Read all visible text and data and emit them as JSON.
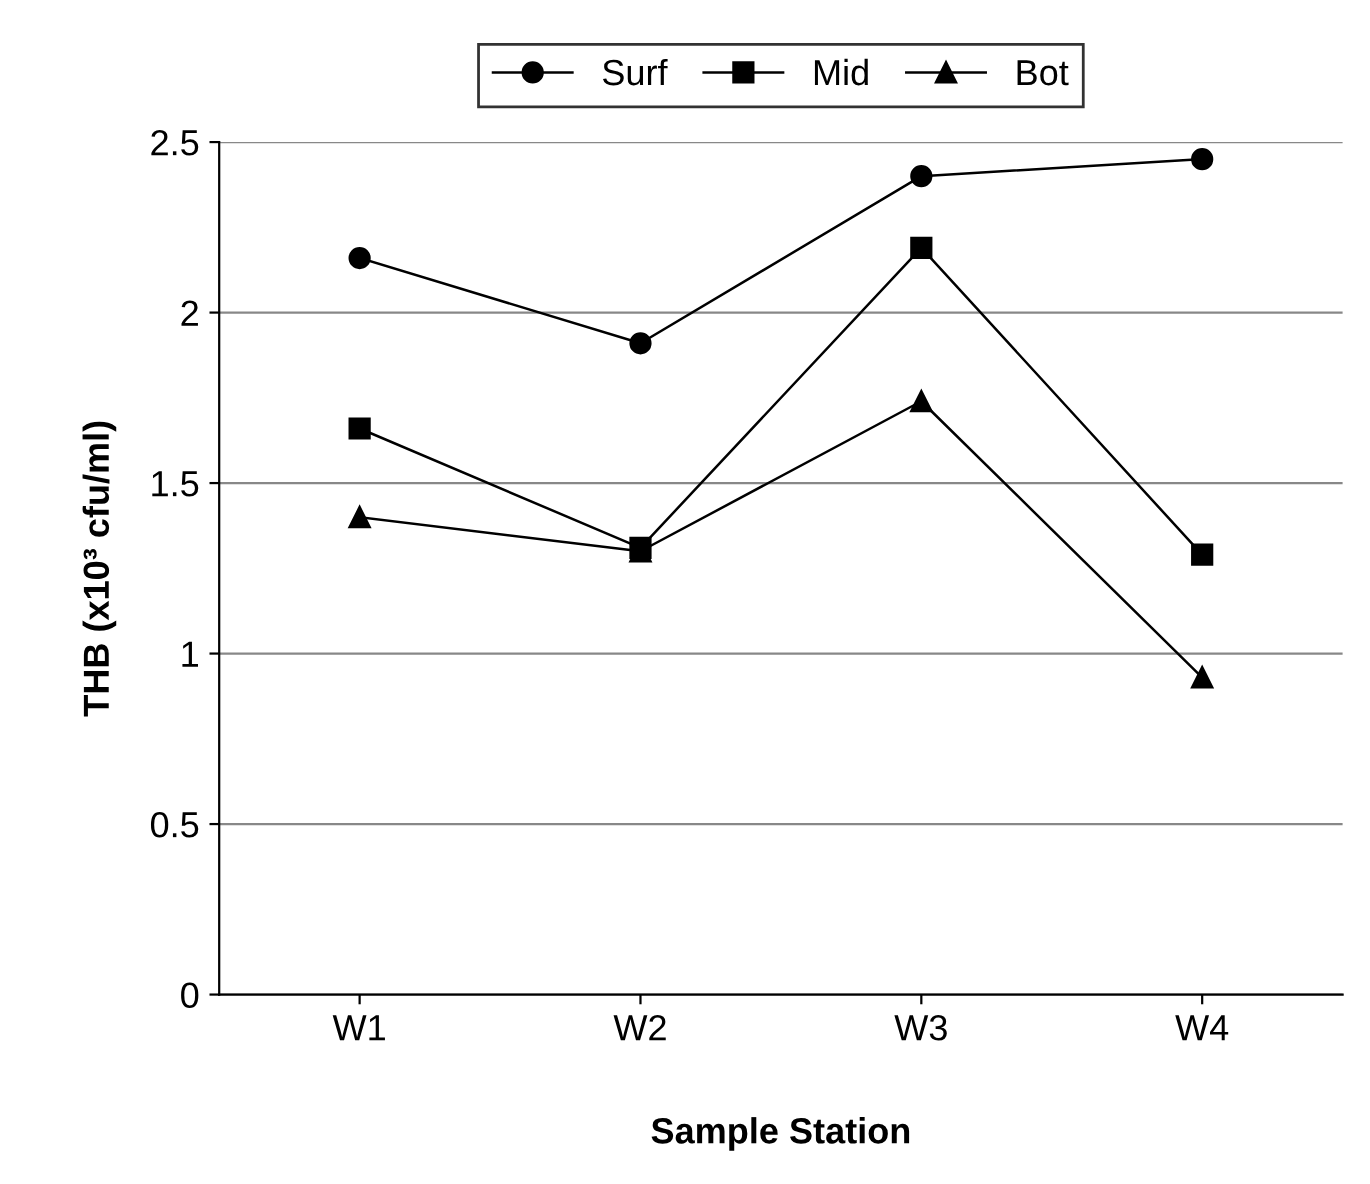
{
  "chart_data": {
    "type": "line",
    "xlabel": "Sample Station",
    "ylabel": "THB (x10³ cfu/ml)",
    "categories": [
      "W1",
      "W2",
      "W3",
      "W4"
    ],
    "series": [
      {
        "name": "Surf",
        "color": "#000000",
        "marker": "circle",
        "values": [
          2.16,
          1.91,
          2.4,
          2.45
        ]
      },
      {
        "name": "Mid",
        "color": "#000000",
        "marker": "square",
        "values": [
          1.66,
          1.31,
          2.19,
          1.29
        ]
      },
      {
        "name": "Bot",
        "color": "#000000",
        "marker": "triangle",
        "values": [
          1.4,
          1.3,
          1.74,
          0.93
        ]
      }
    ],
    "ylim": [
      0,
      2.5
    ],
    "yticks": [
      0,
      0.5,
      1,
      1.5,
      2,
      2.5
    ],
    "grid": "y",
    "legend": "top",
    "line_style": "solid"
  }
}
